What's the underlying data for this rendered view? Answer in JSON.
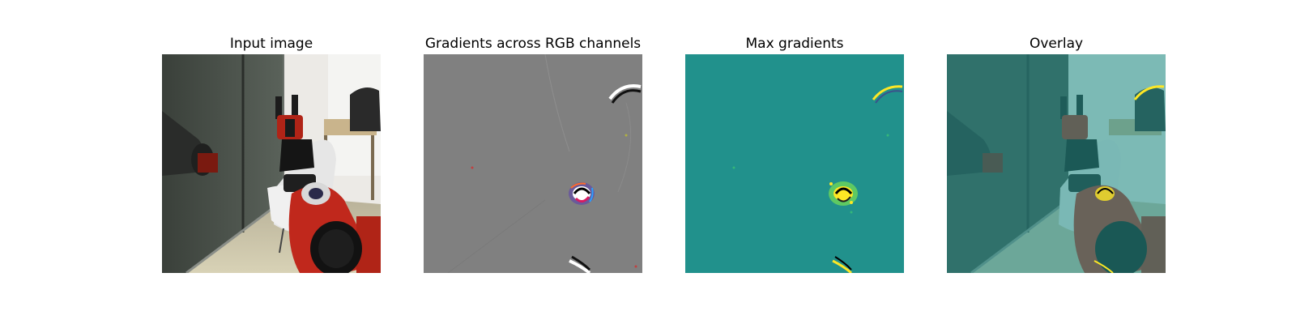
{
  "figure": {
    "panels": [
      {
        "title": "Input image"
      },
      {
        "title": "Gradients across RGB channels"
      },
      {
        "title": "Max gradients"
      },
      {
        "title": "Overlay"
      }
    ]
  },
  "colors": {
    "gradient_gray": "#808080",
    "max_grad_background": "#21918c",
    "overlay_tint": "#5ec8c0",
    "highlight_yellow": "#fde725",
    "robot_red": "#c0281c"
  }
}
